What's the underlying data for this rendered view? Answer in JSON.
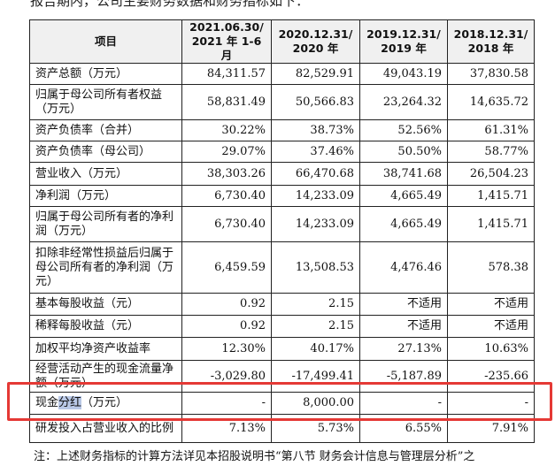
{
  "intro_text": "报告期内，公司主要财务数据和财务指标如下：",
  "table": {
    "headers": [
      "项目",
      "2021.06.30/\n2021 年 1-6 月",
      "2020.12.31/\n2020 年",
      "2019.12.31/\n2019 年",
      "2018.12.31/\n2018 年"
    ],
    "rows": [
      {
        "label": "资产总额（万元）",
        "values": [
          "84,311.57",
          "82,529.91",
          "49,043.19",
          "37,830.58"
        ]
      },
      {
        "label": "归属于母公司所有者权益（万元）",
        "values": [
          "58,831.49",
          "50,566.83",
          "23,264.32",
          "14,635.72"
        ]
      },
      {
        "label": "资产负债率（合并）",
        "values": [
          "30.22%",
          "38.73%",
          "52.56%",
          "61.31%"
        ]
      },
      {
        "label": "资产负债率（母公司）",
        "values": [
          "29.07%",
          "37.46%",
          "50.50%",
          "58.77%"
        ]
      },
      {
        "label": "营业收入（万元）",
        "values": [
          "38,303.26",
          "66,470.68",
          "38,741.68",
          "26,504.23"
        ]
      },
      {
        "label": "净利润（万元）",
        "values": [
          "6,730.40",
          "14,233.09",
          "4,665.49",
          "1,415.71"
        ]
      },
      {
        "label": "归属于母公司所有者的净利润（万元）",
        "values": [
          "6,730.40",
          "14,233.09",
          "4,665.49",
          "1,415.71"
        ]
      },
      {
        "label": "扣除非经常性损益后归属于母公司所有者的净利润（万元）",
        "values": [
          "6,459.59",
          "13,508.53",
          "4,476.46",
          "578.38"
        ]
      },
      {
        "label": "基本每股收益（元）",
        "values": [
          "0.92",
          "2.15",
          "不适用",
          "不适用"
        ]
      },
      {
        "label": "稀释每股收益（元）",
        "values": [
          "0.92",
          "2.15",
          "不适用",
          "不适用"
        ]
      },
      {
        "label": "加权平均净资产收益率",
        "values": [
          "12.30%",
          "40.17%",
          "27.13%",
          "10.63%"
        ]
      },
      {
        "label": "经营活动产生的现金流量净额（万元）",
        "values": [
          "-3,029.80",
          "-17,499.41",
          "-5,187.89",
          "-235.66"
        ]
      },
      {
        "label_parts": [
          "现金",
          "分红",
          "（万元）"
        ],
        "values": [
          "-",
          "8,000.00",
          "-",
          "-"
        ]
      },
      {
        "label": "研发投入占营业收入的比例",
        "values": [
          "7.13%",
          "5.73%",
          "6.55%",
          "7.91%"
        ]
      }
    ]
  },
  "footnote": "注：上述财务指标的计算方法详见本招股说明书“第八节 财务会计信息与管理层分析”之",
  "colors": {
    "highlight_border": "#e53935",
    "selection": "#b9c8e6",
    "header_bg": "#f0f0f0"
  }
}
